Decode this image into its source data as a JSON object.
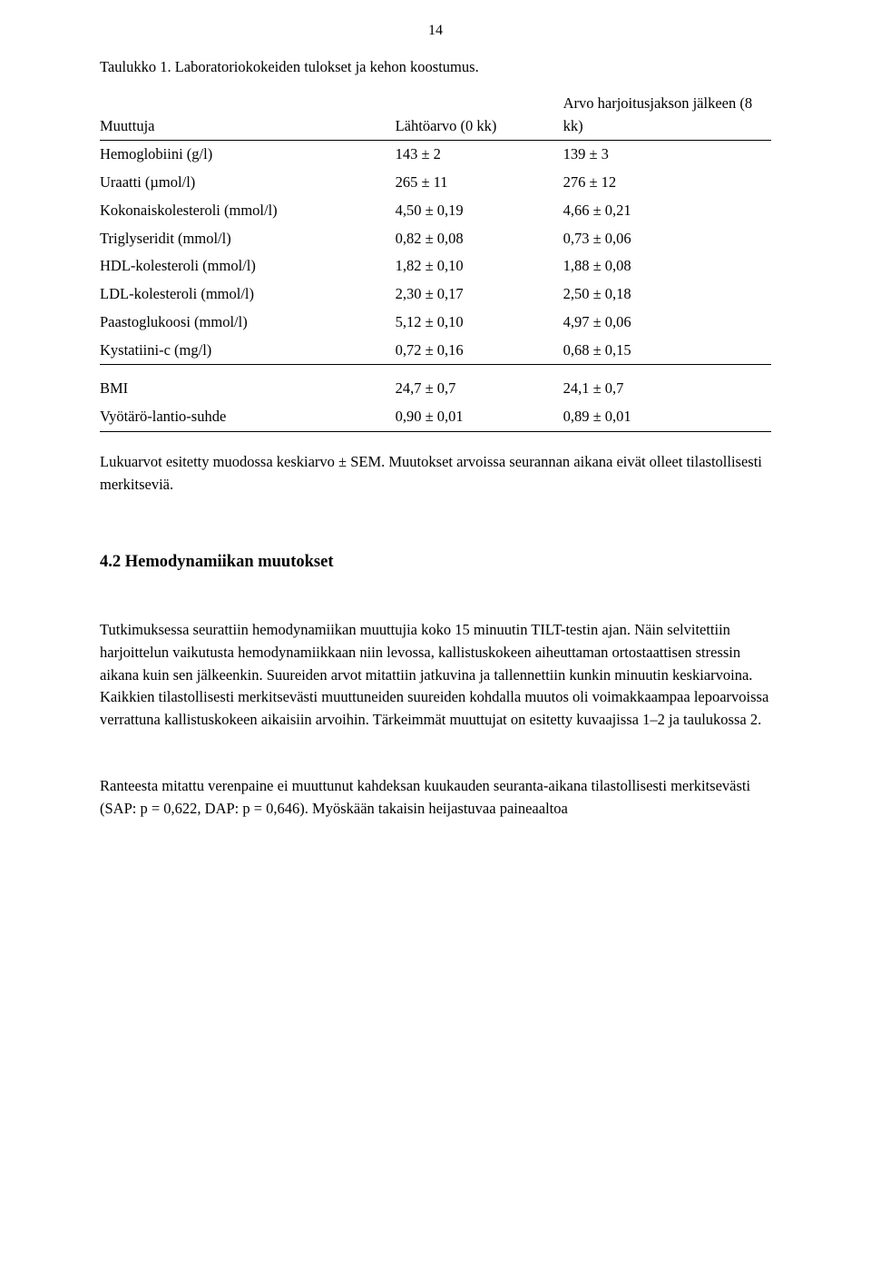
{
  "page_number": "14",
  "table_caption": "Taulukko 1. Laboratoriokokeiden tulokset ja kehon koostumus.",
  "table": {
    "head": {
      "muuttuja": "Muuttuja",
      "baseline": "Lähtöarvo (0 kk)",
      "after": "Arvo harjoitusjakson jälkeen (8 kk)"
    },
    "rows_top": [
      {
        "name": "Hemoglobiini (g/l)",
        "base": "143 ± 2",
        "after": "139 ± 3"
      },
      {
        "name": "Uraatti (µmol/l)",
        "base": "265 ± 11",
        "after": "276 ± 12"
      },
      {
        "name": "Kokonaiskolesteroli (mmol/l)",
        "base": "4,50 ± 0,19",
        "after": "4,66 ± 0,21"
      },
      {
        "name": "Triglyseridit (mmol/l)",
        "base": "0,82 ± 0,08",
        "after": "0,73 ± 0,06"
      },
      {
        "name": "HDL-kolesteroli (mmol/l)",
        "base": "1,82 ± 0,10",
        "after": "1,88 ± 0,08"
      },
      {
        "name": "LDL-kolesteroli (mmol/l)",
        "base": "2,30 ± 0,17",
        "after": "2,50 ± 0,18"
      },
      {
        "name": "Paastoglukoosi (mmol/l)",
        "base": "5,12 ± 0,10",
        "after": "4,97 ± 0,06"
      },
      {
        "name": "Kystatiini-c (mg/l)",
        "base": "0,72 ± 0,16",
        "after": "0,68 ± 0,15"
      }
    ],
    "rows_bottom": [
      {
        "name": "BMI",
        "base": "24,7 ± 0,7",
        "after": "24,1  ± 0,7"
      },
      {
        "name": "Vyötärö-lantio-suhde",
        "base": "0,90  ± 0,01",
        "after": "0,89  ± 0,01"
      }
    ]
  },
  "table_note": "Lukuarvot esitetty muodossa keskiarvo ± SEM. Muutokset arvoissa seurannan aikana eivät olleet tilastollisesti merkitseviä.",
  "section_heading": "4.2 Hemodynamiikan muutokset",
  "para1": "Tutkimuksessa seurattiin hemodynamiikan muuttujia koko 15 minuutin TILT-testin ajan. Näin selvitettiin harjoittelun vaikutusta hemodynamiikkaan niin levossa, kallistuskokeen aiheuttaman ortostaattisen stressin aikana kuin sen jälkeenkin. Suureiden arvot mitattiin jatkuvina ja tallennettiin kunkin minuutin keskiarvoina. Kaikkien tilastollisesti merkitsevästi muuttuneiden suureiden kohdalla muutos oli voimakkaampaa lepoarvoissa verrattuna kallistuskokeen aikaisiin arvoihin. Tärkeimmät muuttujat on esitetty kuvaajissa 1–2 ja taulukossa 2.",
  "para2": "Ranteesta mitattu verenpaine ei muuttunut kahdeksan kuukauden seuranta-aikana tilastollisesti merkitsevästi (SAP: p = 0,622, DAP: p = 0,646). Myöskään takaisin heijastuvaa paineaaltoa"
}
